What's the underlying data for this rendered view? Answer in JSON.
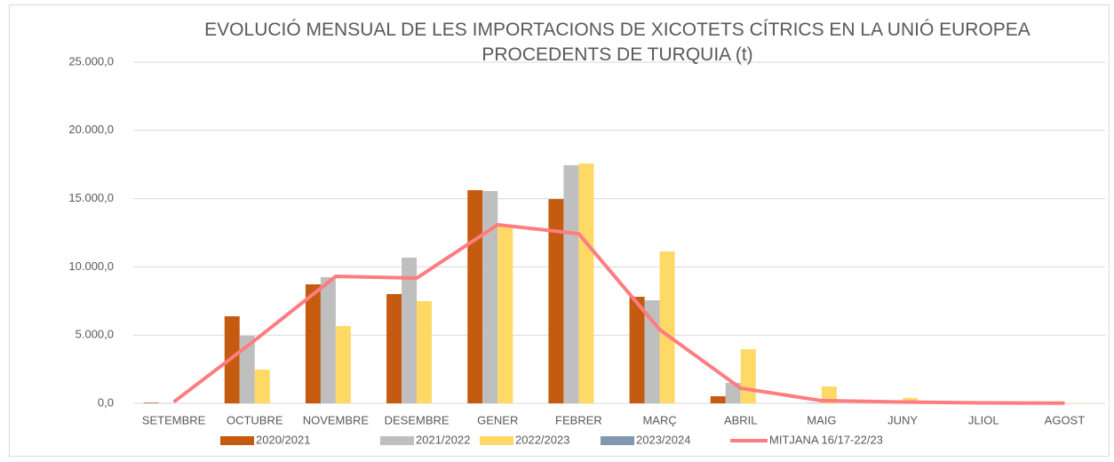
{
  "chart_data": {
    "type": "bar",
    "title": "EVOLUCIÓ MENSUAL DE LES IMPORTACIONS DE XICOTETS CÍTRICS EN LA UNIÓ EUROPEA PROCEDENTS DE TURQUIA (t)",
    "categories": [
      "SETEMBRE",
      "OCTUBRE",
      "NOVEMBRE",
      "DESEMBRE",
      "GENER",
      "FEBRER",
      "MARÇ",
      "ABRIL",
      "MAIG",
      "JUNY",
      "JLIOL",
      "AGOST"
    ],
    "series": [
      {
        "name": "2020/2021",
        "color": "#c55a11",
        "type": "bar",
        "values": [
          50,
          6380,
          8720,
          8010,
          15620,
          14970,
          7810,
          520,
          0,
          0,
          0,
          0
        ]
      },
      {
        "name": "2021/2022",
        "color": "#bfbfbf",
        "type": "bar",
        "values": [
          20,
          4950,
          9250,
          10680,
          15560,
          17450,
          7550,
          1500,
          50,
          20,
          0,
          0
        ]
      },
      {
        "name": "2022/2023",
        "color": "#ffd966",
        "type": "bar",
        "values": [
          0,
          2470,
          5660,
          7490,
          13020,
          17580,
          11130,
          3970,
          1240,
          390,
          10,
          30
        ]
      },
      {
        "name": "2023/2024",
        "color": "#8497b0",
        "type": "bar",
        "values": [
          null,
          null,
          null,
          null,
          null,
          null,
          null,
          null,
          null,
          null,
          null,
          null
        ]
      },
      {
        "name": "MITJANA 16/17-22/23",
        "color": "#ff7c80",
        "type": "line",
        "values": [
          100,
          4620,
          9310,
          9180,
          13090,
          12430,
          5400,
          1110,
          200,
          100,
          30,
          20
        ]
      }
    ],
    "ylim": [
      0,
      25000
    ],
    "yticks": [
      {
        "value": 0,
        "label": "0,0"
      },
      {
        "value": 5000,
        "label": "5.000,0"
      },
      {
        "value": 10000,
        "label": "10.000,0"
      },
      {
        "value": 15000,
        "label": "15.000,0"
      },
      {
        "value": 20000,
        "label": "20.000,0"
      },
      {
        "value": 25000,
        "label": "25.000,0"
      }
    ],
    "grid": true
  }
}
